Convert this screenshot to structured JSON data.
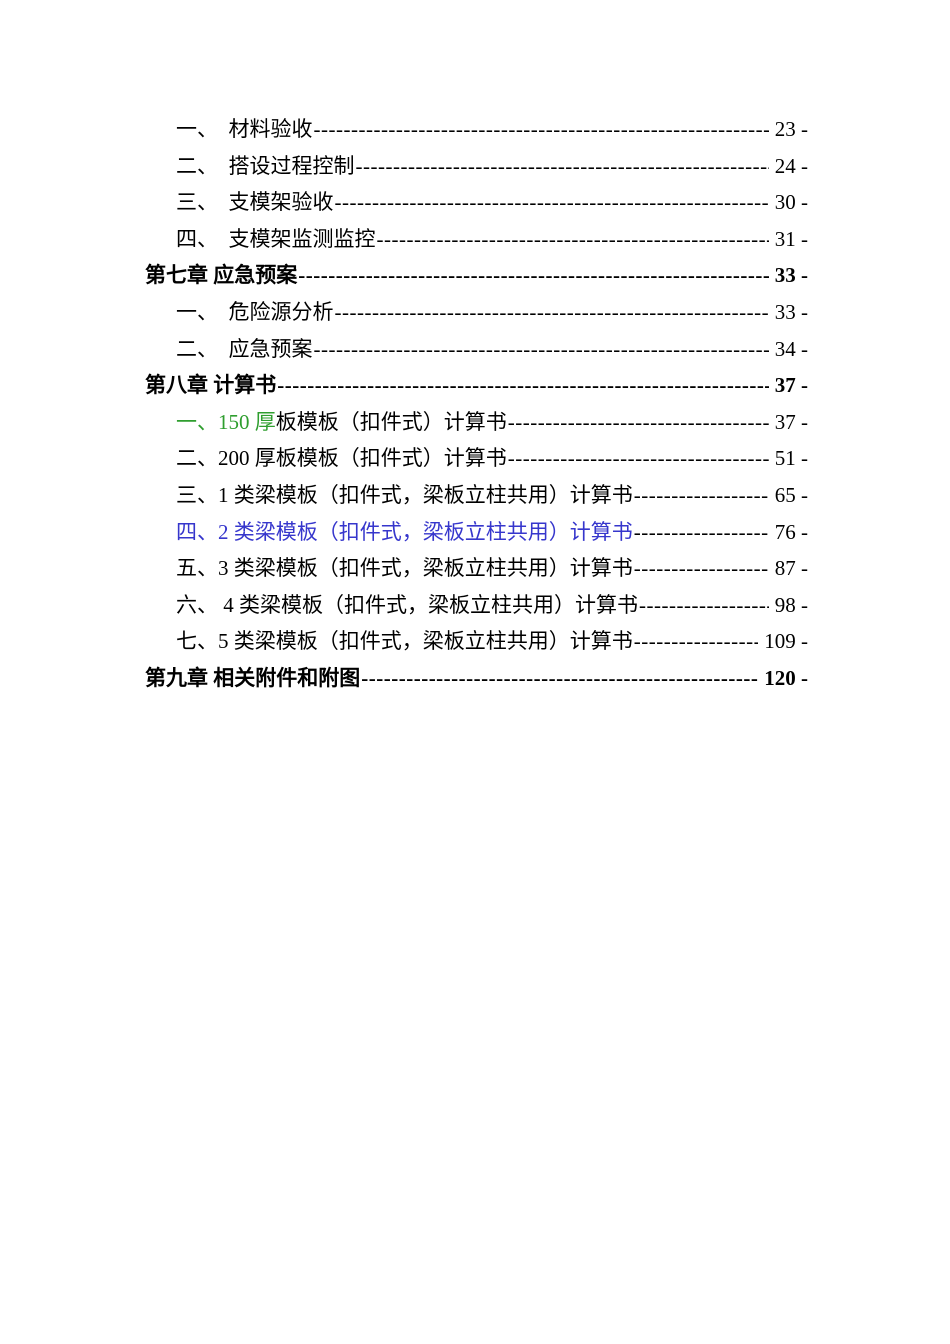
{
  "document": {
    "type": "table-of-contents",
    "background": "#ffffff"
  },
  "colors": {
    "default": "#000000",
    "green": "#2f9e2f",
    "blue": "#3636cc"
  },
  "toc": {
    "entries": [
      {
        "style": "sub",
        "segments": [
          {
            "text": "一、　材料验收"
          }
        ],
        "page": "23 -"
      },
      {
        "style": "sub",
        "segments": [
          {
            "text": "二、　搭设过程控制"
          }
        ],
        "page": "24 -"
      },
      {
        "style": "sub",
        "segments": [
          {
            "text": "三、　支模架验收"
          }
        ],
        "page": "30 -"
      },
      {
        "style": "sub",
        "segments": [
          {
            "text": "四、　支模架监测监控"
          }
        ],
        "page": "31 -"
      },
      {
        "style": "chapter",
        "segments": [
          {
            "text": "第七章 应急预案"
          }
        ],
        "page": "33 -"
      },
      {
        "style": "sub",
        "segments": [
          {
            "text": "一、　危险源分析"
          }
        ],
        "page": "33 -"
      },
      {
        "style": "sub",
        "segments": [
          {
            "text": "二、　应急预案"
          }
        ],
        "page": "34 -"
      },
      {
        "style": "chapter",
        "segments": [
          {
            "text": "第八章 计算书"
          }
        ],
        "page": "37 -"
      },
      {
        "style": "sub",
        "segments": [
          {
            "text": "一、150 厚",
            "color": "green"
          },
          {
            "text": "板模板（扣件式）计算书"
          }
        ],
        "page": "37 -"
      },
      {
        "style": "sub",
        "segments": [
          {
            "text": "二、200 厚板模板（扣件式）计算书"
          }
        ],
        "page": "51 -"
      },
      {
        "style": "sub",
        "segments": [
          {
            "text": "三、1 类梁模板（扣件式，梁板立柱共用）计算书"
          }
        ],
        "page": "65 -"
      },
      {
        "style": "sub",
        "segments": [
          {
            "text": "四、2 类梁模板（扣件式，梁板立柱共用）计算书",
            "color": "blue"
          }
        ],
        "page": "76 -"
      },
      {
        "style": "sub",
        "segments": [
          {
            "text": "五、3 类梁模板（扣件式，梁板立柱共用）计算书"
          }
        ],
        "page": "87 -"
      },
      {
        "style": "sub",
        "segments": [
          {
            "text": "六、 4 类梁模板（扣件式，梁板立柱共用）计算书"
          }
        ],
        "page": "98 -"
      },
      {
        "style": "sub",
        "segments": [
          {
            "text": "七、5 类梁模板（扣件式，梁板立柱共用）计算书"
          }
        ],
        "page": "109 -"
      },
      {
        "style": "chapter",
        "segments": [
          {
            "text": "第九章 相关附件和附图"
          }
        ],
        "page": "120 -"
      }
    ]
  }
}
